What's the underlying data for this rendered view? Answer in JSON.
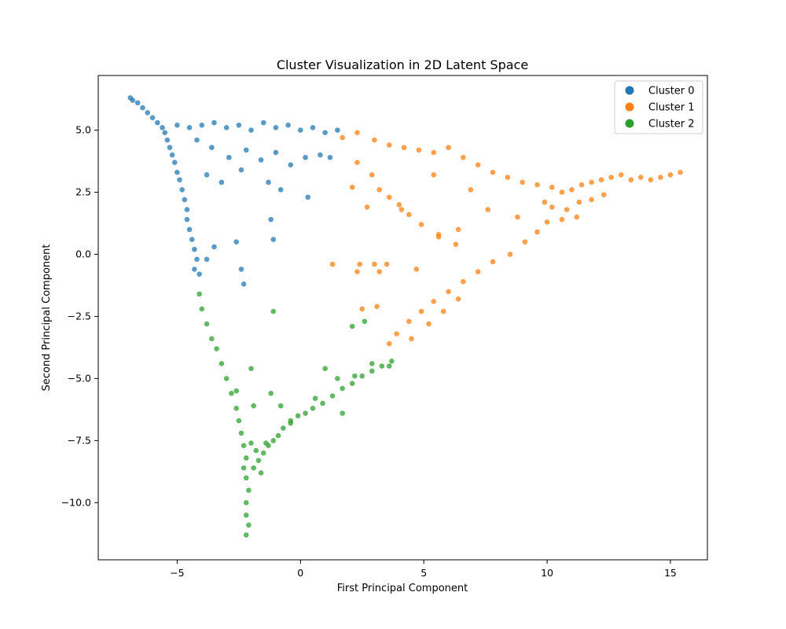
{
  "chart_data": {
    "type": "scatter",
    "title": "Cluster Visualization in 2D Latent Space",
    "xlabel": "First Principal Component",
    "ylabel": "Second Principal Component",
    "xlim": [
      -8.2,
      16.5
    ],
    "ylim": [
      -12.3,
      7.2
    ],
    "xticks": [
      -5,
      0,
      5,
      10,
      15
    ],
    "yticks": [
      5.0,
      2.5,
      0.0,
      -2.5,
      -5.0,
      -7.5,
      -10.0
    ],
    "legend_position": "top-right",
    "grid": false,
    "series": [
      {
        "name": "Cluster 0",
        "color": "#1f77b4",
        "points": [
          [
            -6.9,
            6.3
          ],
          [
            -6.8,
            6.2
          ],
          [
            -6.6,
            6.1
          ],
          [
            -6.4,
            5.9
          ],
          [
            -6.2,
            5.7
          ],
          [
            -6.0,
            5.5
          ],
          [
            -5.8,
            5.3
          ],
          [
            -5.6,
            5.1
          ],
          [
            -5.5,
            4.9
          ],
          [
            -5.4,
            4.6
          ],
          [
            -5.3,
            4.3
          ],
          [
            -5.2,
            4.0
          ],
          [
            -5.1,
            3.7
          ],
          [
            -5.0,
            3.3
          ],
          [
            -4.9,
            3.0
          ],
          [
            -4.8,
            2.6
          ],
          [
            -4.7,
            2.2
          ],
          [
            -4.6,
            1.8
          ],
          [
            -4.6,
            1.4
          ],
          [
            -4.5,
            1.0
          ],
          [
            -4.4,
            0.6
          ],
          [
            -4.3,
            0.2
          ],
          [
            -4.2,
            -0.2
          ],
          [
            -4.3,
            -0.6
          ],
          [
            -4.1,
            -0.8
          ],
          [
            -5.0,
            5.2
          ],
          [
            -4.5,
            5.1
          ],
          [
            -4.0,
            5.2
          ],
          [
            -3.5,
            5.3
          ],
          [
            -3.0,
            5.1
          ],
          [
            -2.5,
            5.2
          ],
          [
            -2.0,
            5.0
          ],
          [
            -1.5,
            5.3
          ],
          [
            -1.0,
            5.1
          ],
          [
            -0.5,
            5.2
          ],
          [
            0.0,
            5.0
          ],
          [
            0.5,
            5.1
          ],
          [
            1.0,
            4.9
          ],
          [
            1.5,
            5.0
          ],
          [
            -4.2,
            4.6
          ],
          [
            -3.6,
            4.3
          ],
          [
            -2.9,
            3.9
          ],
          [
            -2.2,
            4.2
          ],
          [
            -1.6,
            3.8
          ],
          [
            -1.0,
            4.1
          ],
          [
            -0.4,
            3.6
          ],
          [
            0.2,
            3.9
          ],
          [
            0.8,
            4.0
          ],
          [
            1.2,
            3.9
          ],
          [
            -3.8,
            3.2
          ],
          [
            -3.2,
            2.9
          ],
          [
            -2.4,
            3.4
          ],
          [
            -1.3,
            2.9
          ],
          [
            0.3,
            2.3
          ],
          [
            -0.8,
            2.6
          ],
          [
            -1.2,
            1.4
          ],
          [
            -2.6,
            0.5
          ],
          [
            -1.1,
            0.6
          ],
          [
            -3.5,
            0.3
          ],
          [
            -3.8,
            -0.2
          ],
          [
            -2.4,
            -0.6
          ],
          [
            -2.3,
            -1.2
          ]
        ]
      },
      {
        "name": "Cluster 1",
        "color": "#ff7f0e",
        "points": [
          [
            1.7,
            4.7
          ],
          [
            2.3,
            4.9
          ],
          [
            3.0,
            4.6
          ],
          [
            3.6,
            4.4
          ],
          [
            4.2,
            4.3
          ],
          [
            4.8,
            4.2
          ],
          [
            5.4,
            4.1
          ],
          [
            6.0,
            4.3
          ],
          [
            6.6,
            3.9
          ],
          [
            7.2,
            3.6
          ],
          [
            7.8,
            3.3
          ],
          [
            8.4,
            3.1
          ],
          [
            9.0,
            2.9
          ],
          [
            9.6,
            2.8
          ],
          [
            10.2,
            2.7
          ],
          [
            10.6,
            2.5
          ],
          [
            11.0,
            2.6
          ],
          [
            11.4,
            2.8
          ],
          [
            11.8,
            2.9
          ],
          [
            12.2,
            3.0
          ],
          [
            12.6,
            3.1
          ],
          [
            13.0,
            3.2
          ],
          [
            13.4,
            3.0
          ],
          [
            13.8,
            3.1
          ],
          [
            14.2,
            3.0
          ],
          [
            14.6,
            3.1
          ],
          [
            15.0,
            3.2
          ],
          [
            15.4,
            3.3
          ],
          [
            10.2,
            1.9
          ],
          [
            10.8,
            1.8
          ],
          [
            11.3,
            2.1
          ],
          [
            11.8,
            2.2
          ],
          [
            12.3,
            2.4
          ],
          [
            10.0,
            1.3
          ],
          [
            10.6,
            1.4
          ],
          [
            11.2,
            1.5
          ],
          [
            9.6,
            0.9
          ],
          [
            9.9,
            2.1
          ],
          [
            9.1,
            0.5
          ],
          [
            8.5,
            0.0
          ],
          [
            7.8,
            -0.3
          ],
          [
            7.2,
            -0.7
          ],
          [
            6.6,
            -1.1
          ],
          [
            6.0,
            -1.5
          ],
          [
            5.4,
            -1.9
          ],
          [
            4.9,
            -2.3
          ],
          [
            4.4,
            -2.7
          ],
          [
            3.9,
            -3.2
          ],
          [
            3.6,
            -3.6
          ],
          [
            5.8,
            -2.3
          ],
          [
            5.2,
            -2.8
          ],
          [
            4.5,
            -3.4
          ],
          [
            6.4,
            -1.8
          ],
          [
            2.3,
            3.7
          ],
          [
            2.9,
            3.2
          ],
          [
            2.1,
            2.7
          ],
          [
            3.2,
            2.6
          ],
          [
            3.6,
            2.3
          ],
          [
            4.0,
            2.0
          ],
          [
            4.4,
            1.6
          ],
          [
            4.9,
            1.2
          ],
          [
            5.6,
            0.8
          ],
          [
            6.3,
            0.4
          ],
          [
            2.7,
            1.9
          ],
          [
            4.1,
            1.8
          ],
          [
            5.6,
            0.7
          ],
          [
            6.4,
            1.0
          ],
          [
            7.6,
            1.8
          ],
          [
            8.8,
            1.5
          ],
          [
            6.9,
            2.6
          ],
          [
            5.4,
            3.2
          ],
          [
            2.4,
            -0.4
          ],
          [
            3.0,
            -0.4
          ],
          [
            3.2,
            -0.7
          ],
          [
            2.3,
            -0.7
          ],
          [
            1.3,
            -0.4
          ],
          [
            4.7,
            -0.6
          ],
          [
            3.5,
            -0.4
          ],
          [
            2.5,
            -2.2
          ],
          [
            3.1,
            -2.1
          ]
        ]
      },
      {
        "name": "Cluster 2",
        "color": "#2ca02c",
        "points": [
          [
            -4.1,
            -1.6
          ],
          [
            -4.0,
            -2.2
          ],
          [
            -3.8,
            -2.8
          ],
          [
            -3.6,
            -3.4
          ],
          [
            -3.4,
            -3.8
          ],
          [
            -3.2,
            -4.4
          ],
          [
            -3.0,
            -5.0
          ],
          [
            -2.8,
            -5.6
          ],
          [
            -2.6,
            -6.2
          ],
          [
            -2.5,
            -6.7
          ],
          [
            -2.4,
            -7.2
          ],
          [
            -2.3,
            -7.7
          ],
          [
            -2.2,
            -8.2
          ],
          [
            -2.3,
            -8.6
          ],
          [
            -2.2,
            -9.0
          ],
          [
            -2.1,
            -9.5
          ],
          [
            -2.2,
            -10.0
          ],
          [
            -2.2,
            -10.5
          ],
          [
            -2.1,
            -10.9
          ],
          [
            -2.2,
            -11.3
          ],
          [
            -1.9,
            -8.6
          ],
          [
            -1.7,
            -8.3
          ],
          [
            -1.5,
            -8.0
          ],
          [
            -1.3,
            -7.7
          ],
          [
            -1.1,
            -7.5
          ],
          [
            -0.9,
            -7.3
          ],
          [
            -0.7,
            -7.0
          ],
          [
            -0.4,
            -6.7
          ],
          [
            -0.1,
            -6.5
          ],
          [
            0.2,
            -6.4
          ],
          [
            0.5,
            -6.2
          ],
          [
            0.9,
            -6.0
          ],
          [
            1.3,
            -5.7
          ],
          [
            1.7,
            -5.4
          ],
          [
            2.1,
            -5.2
          ],
          [
            2.5,
            -4.9
          ],
          [
            2.9,
            -4.7
          ],
          [
            3.3,
            -4.5
          ],
          [
            3.7,
            -4.3
          ],
          [
            -1.8,
            -7.9
          ],
          [
            -1.6,
            -8.8
          ],
          [
            -2.0,
            -7.6
          ],
          [
            -1.4,
            -7.6
          ],
          [
            -2.6,
            -5.5
          ],
          [
            -1.9,
            -6.1
          ],
          [
            -2.0,
            -4.6
          ],
          [
            -1.2,
            -5.6
          ],
          [
            -0.8,
            -6.1
          ],
          [
            1.0,
            -4.6
          ],
          [
            1.7,
            -6.4
          ],
          [
            2.2,
            -4.9
          ],
          [
            -1.1,
            -2.3
          ],
          [
            2.1,
            -2.9
          ],
          [
            2.6,
            -2.7
          ],
          [
            0.6,
            -5.8
          ],
          [
            -0.4,
            -6.8
          ],
          [
            1.5,
            -5.0
          ],
          [
            2.9,
            -4.4
          ],
          [
            3.6,
            -4.5
          ]
        ]
      }
    ]
  }
}
